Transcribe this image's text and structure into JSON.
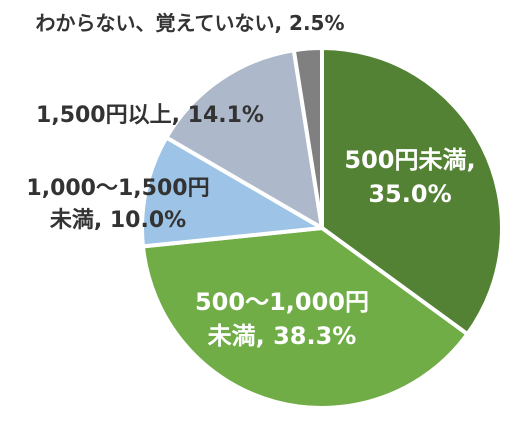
{
  "chart_data": {
    "type": "pie",
    "title": "",
    "start_angle_deg": 0,
    "direction": "clockwise",
    "slices": [
      {
        "category": "500円未満",
        "value": 35.0,
        "value_label": "35.0%",
        "label_lines": [
          "500円未満,",
          "35.0%"
        ],
        "color": "#548235",
        "label_color": "#ffffff"
      },
      {
        "category": "500〜1,000円未満",
        "value": 38.3,
        "value_label": "38.3%",
        "label_lines": [
          "500〜1,000円",
          "未満, 38.3%"
        ],
        "color": "#70AD47",
        "label_color": "#ffffff"
      },
      {
        "category": "1,000〜1,500円未満",
        "value": 10.0,
        "value_label": "10.0%",
        "label_lines": [
          "1,000〜1,500円",
          "未満, 10.0%"
        ],
        "color": "#9DC3E6",
        "label_color": "#333333"
      },
      {
        "category": "1,500円以上",
        "value": 14.1,
        "value_label": "14.1%",
        "label_lines": [
          "1,500円以上, 14.1%"
        ],
        "color": "#ADB9CA",
        "label_color": "#333333"
      },
      {
        "category": "わからない、覚えていない",
        "value": 2.5,
        "value_label": "2.5%",
        "label_lines": [
          "わからない、覚えていない, 2.5%"
        ],
        "color": "#808080",
        "label_color": "#333333"
      }
    ]
  }
}
